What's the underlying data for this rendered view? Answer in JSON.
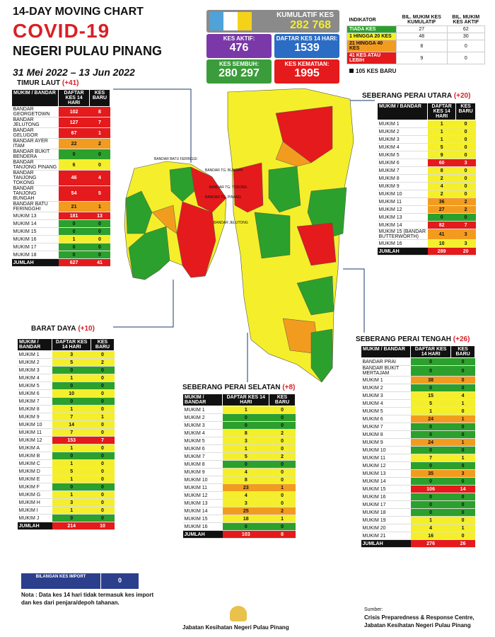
{
  "title": {
    "line1": "14-DAY MOVING CHART",
    "line2": "COVID-19",
    "line3": "NEGERI PULAU PINANG"
  },
  "date_range": "31 Mei 2022 – 13 Jun 2022",
  "kpis": {
    "kumulatif": {
      "label": "KUMULATIF KES",
      "value": "282 768"
    },
    "aktif": {
      "label": "KES AKTIF:",
      "value": "476"
    },
    "daftar14": {
      "label": "DAFTAR KES 14 HARI:",
      "value": "1539"
    },
    "sembuh": {
      "label": "KES SEMBUH:",
      "value": "280 297"
    },
    "kematian": {
      "label": "KES KEMATIAN:",
      "value": "1995"
    }
  },
  "legend": {
    "header": [
      "INDIKATOR",
      "BIL. MUKIM KES KUMULATIF",
      "BIL. MUKIM KES AKTIF"
    ],
    "rows": [
      {
        "label": "TIADA KES",
        "a": "27",
        "b": "62",
        "color": "#2ca02c"
      },
      {
        "label": "1 HINGGA 20 KES",
        "a": "48",
        "b": "30",
        "color": "#f4ef2a"
      },
      {
        "label": "21 HINGGA 40 KES",
        "a": "8",
        "b": "0",
        "color": "#f29c1f"
      },
      {
        "label": "41 KES ATAU LEBIH",
        "a": "9",
        "b": "0",
        "color": "#e41a1c"
      }
    ],
    "note": "105 KES BARU"
  },
  "sections": {
    "timur_laut": {
      "name": "TIMUR LAUT",
      "delta": "(+41)"
    },
    "barat_daya": {
      "name": "BARAT DAYA",
      "delta": "(+10)"
    },
    "spu": {
      "name": "SEBERANG PERAI UTARA",
      "delta": "(+20)"
    },
    "spt": {
      "name": "SEBERANG PERAI TENGAH",
      "delta": "(+26)"
    },
    "sps": {
      "name": "SEBERANG PERAI SELATAN",
      "delta": "(+8)"
    }
  },
  "table_headers": [
    "MUKIM / BANDAR",
    "DAFTAR KES 14 HARI",
    "KES BARU"
  ],
  "tables": {
    "timur_laut": {
      "rows": [
        [
          "BANDAR GEORGETOWN",
          "102",
          "8",
          "r"
        ],
        [
          "BANDAR JELUTONG",
          "127",
          "7",
          "r"
        ],
        [
          "BANDAR GELUGOR",
          "67",
          "1",
          "r"
        ],
        [
          "BANDAR AYER ITAM",
          "22",
          "2",
          "o"
        ],
        [
          "BANDAR BUKIT BENDERA",
          "0",
          "0",
          "g"
        ],
        [
          "BANDAR TANJONG PINANG",
          "6",
          "0",
          "y"
        ],
        [
          "BANDAR TANJONG TOKONG",
          "46",
          "4",
          "r"
        ],
        [
          "BANDAR TANJONG BUNGAH",
          "54",
          "5",
          "r"
        ],
        [
          "BANDAR BATU FERINGGHI",
          "21",
          "1",
          "o"
        ],
        [
          "MUKIM 13",
          "181",
          "13",
          "r"
        ],
        [
          "MUKIM 14",
          "0",
          "0",
          "g"
        ],
        [
          "MUKIM 15",
          "0",
          "0",
          "g"
        ],
        [
          "MUKIM 16",
          "1",
          "0",
          "y"
        ],
        [
          "MUKIM 17",
          "0",
          "0",
          "g"
        ],
        [
          "MUKIM 18",
          "0",
          "0",
          "g"
        ]
      ],
      "total": [
        "JUMLAH",
        "627",
        "41"
      ]
    },
    "barat_daya": {
      "rows": [
        [
          "MUKIM 1",
          "3",
          "0",
          "y"
        ],
        [
          "MUKIM 2",
          "5",
          "2",
          "y"
        ],
        [
          "MUKIM 3",
          "0",
          "0",
          "g"
        ],
        [
          "MUKIM 4",
          "1",
          "0",
          "y"
        ],
        [
          "MUKIM 5",
          "0",
          "0",
          "g"
        ],
        [
          "MUKIM 6",
          "10",
          "0",
          "y"
        ],
        [
          "MUKIM 7",
          "0",
          "0",
          "g"
        ],
        [
          "MUKIM 8",
          "1",
          "0",
          "y"
        ],
        [
          "MUKIM 9",
          "7",
          "1",
          "y"
        ],
        [
          "MUKIM 10",
          "14",
          "0",
          "y"
        ],
        [
          "MUKIM 11",
          "7",
          "0",
          "y"
        ],
        [
          "MUKIM 12",
          "153",
          "7",
          "r"
        ],
        [
          "MUKIM A",
          "1",
          "0",
          "y"
        ],
        [
          "MUKIM B",
          "0",
          "0",
          "g"
        ],
        [
          "MUKIM C",
          "1",
          "0",
          "y"
        ],
        [
          "MUKIM D",
          "5",
          "0",
          "y"
        ],
        [
          "MUKIM E",
          "1",
          "0",
          "y"
        ],
        [
          "MUKIM F",
          "0",
          "0",
          "g"
        ],
        [
          "MUKIM G",
          "1",
          "0",
          "y"
        ],
        [
          "MUKIM H",
          "3",
          "0",
          "y"
        ],
        [
          "MUKIM I",
          "1",
          "0",
          "y"
        ],
        [
          "MUKIM J",
          "0",
          "0",
          "g"
        ]
      ],
      "total": [
        "JUMLAH",
        "214",
        "10"
      ]
    },
    "spu": {
      "rows": [
        [
          "MUKIM 1",
          "1",
          "0",
          "y"
        ],
        [
          "MUKIM 2",
          "1",
          "0",
          "y"
        ],
        [
          "MUKIM 3",
          "1",
          "0",
          "y"
        ],
        [
          "MUKIM 4",
          "5",
          "0",
          "y"
        ],
        [
          "MUKIM 5",
          "9",
          "0",
          "y"
        ],
        [
          "MUKIM 6",
          "60",
          "3",
          "r"
        ],
        [
          "MUKIM 7",
          "8",
          "0",
          "y"
        ],
        [
          "MUKIM 8",
          "2",
          "0",
          "y"
        ],
        [
          "MUKIM 9",
          "4",
          "0",
          "y"
        ],
        [
          "MUKIM 10",
          "2",
          "0",
          "y"
        ],
        [
          "MUKIM 11",
          "36",
          "2",
          "o"
        ],
        [
          "MUKIM 12",
          "27",
          "2",
          "o"
        ],
        [
          "MUKIM 13",
          "0",
          "0",
          "g"
        ],
        [
          "MUKIM 14",
          "82",
          "7",
          "r"
        ],
        [
          "MUKIM 15 (BANDAR BUTTERWORTH)",
          "41",
          "3",
          "o"
        ],
        [
          "MUKIM 16",
          "10",
          "3",
          "y"
        ]
      ],
      "total": [
        "JUMLAH",
        "289",
        "20"
      ]
    },
    "spt": {
      "rows": [
        [
          "BANDAR PRAI",
          "0",
          "0",
          "g"
        ],
        [
          "BANDAR BUKIT MERTAJAM",
          "0",
          "0",
          "g"
        ],
        [
          "MUKIM 1",
          "38",
          "0",
          "o"
        ],
        [
          "MUKIM 2",
          "0",
          "0",
          "g"
        ],
        [
          "MUKIM 3",
          "15",
          "4",
          "y"
        ],
        [
          "MUKIM 4",
          "5",
          "1",
          "y"
        ],
        [
          "MUKIM 5",
          "1",
          "0",
          "y"
        ],
        [
          "MUKIM 6",
          "24",
          "1",
          "o"
        ],
        [
          "MUKIM 7",
          "0",
          "0",
          "g"
        ],
        [
          "MUKIM 8",
          "0",
          "0",
          "g"
        ],
        [
          "MUKIM 9",
          "24",
          "1",
          "o"
        ],
        [
          "MUKIM 10",
          "0",
          "0",
          "g"
        ],
        [
          "MUKIM 11",
          "7",
          "1",
          "y"
        ],
        [
          "MUKIM 12",
          "0",
          "0",
          "g"
        ],
        [
          "MUKIM 13",
          "35",
          "3",
          "o"
        ],
        [
          "MUKIM 14",
          "0",
          "0",
          "g"
        ],
        [
          "MUKIM 15",
          "106",
          "14",
          "r"
        ],
        [
          "MUKIM 16",
          "0",
          "0",
          "g"
        ],
        [
          "MUKIM 17",
          "0",
          "0",
          "g"
        ],
        [
          "MUKIM 18",
          "0",
          "0",
          "g"
        ],
        [
          "MUKIM 19",
          "1",
          "0",
          "y"
        ],
        [
          "MUKIM 20",
          "4",
          "1",
          "y"
        ],
        [
          "MUKIM 21",
          "16",
          "0",
          "y"
        ]
      ],
      "total": [
        "JUMLAH",
        "276",
        "26"
      ]
    },
    "sps": {
      "rows": [
        [
          "MUKIM 1",
          "1",
          "0",
          "y"
        ],
        [
          "MUKIM 2",
          "0",
          "0",
          "g"
        ],
        [
          "MUKIM 3",
          "0",
          "0",
          "g"
        ],
        [
          "MUKIM 4",
          "8",
          "2",
          "y"
        ],
        [
          "MUKIM 5",
          "3",
          "0",
          "y"
        ],
        [
          "MUKIM 6",
          "1",
          "0",
          "y"
        ],
        [
          "MUKIM 7",
          "5",
          "2",
          "y"
        ],
        [
          "MUKIM 8",
          "0",
          "0",
          "g"
        ],
        [
          "MUKIM 9",
          "4",
          "0",
          "y"
        ],
        [
          "MUKIM 10",
          "8",
          "0",
          "y"
        ],
        [
          "MUKIM 11",
          "23",
          "1",
          "o"
        ],
        [
          "MUKIM 12",
          "4",
          "0",
          "y"
        ],
        [
          "MUKIM 13",
          "3",
          "0",
          "y"
        ],
        [
          "MUKIM 14",
          "25",
          "2",
          "o"
        ],
        [
          "MUKIM 15",
          "18",
          "1",
          "y"
        ],
        [
          "MUKIM 16",
          "0",
          "0",
          "g"
        ]
      ],
      "total": [
        "JUMLAH",
        "103",
        "8"
      ]
    }
  },
  "import": {
    "label": "BILANGAN KES IMPORT",
    "value": "0"
  },
  "nota": "Nota : Data kes 14 hari tidak termasuk kes import dan kes dari penjara/depoh tahanan.",
  "footer": {
    "dept": "Jabatan Kesihatan Negeri Pulau Pinang",
    "source_label": "Sumber:",
    "source1": "Crisis Preparedness & Response Centre,",
    "source2": "Jabatan Kesihatan Negeri Pulau Pinang"
  },
  "map_labels": [
    "BANDAR BATU FERINGGI",
    "BANDAR TG. BUNGAH",
    "BANDAR TG. TOKONG",
    "BANDAR TG. PINANG",
    "BANDAR JELUTONG"
  ]
}
